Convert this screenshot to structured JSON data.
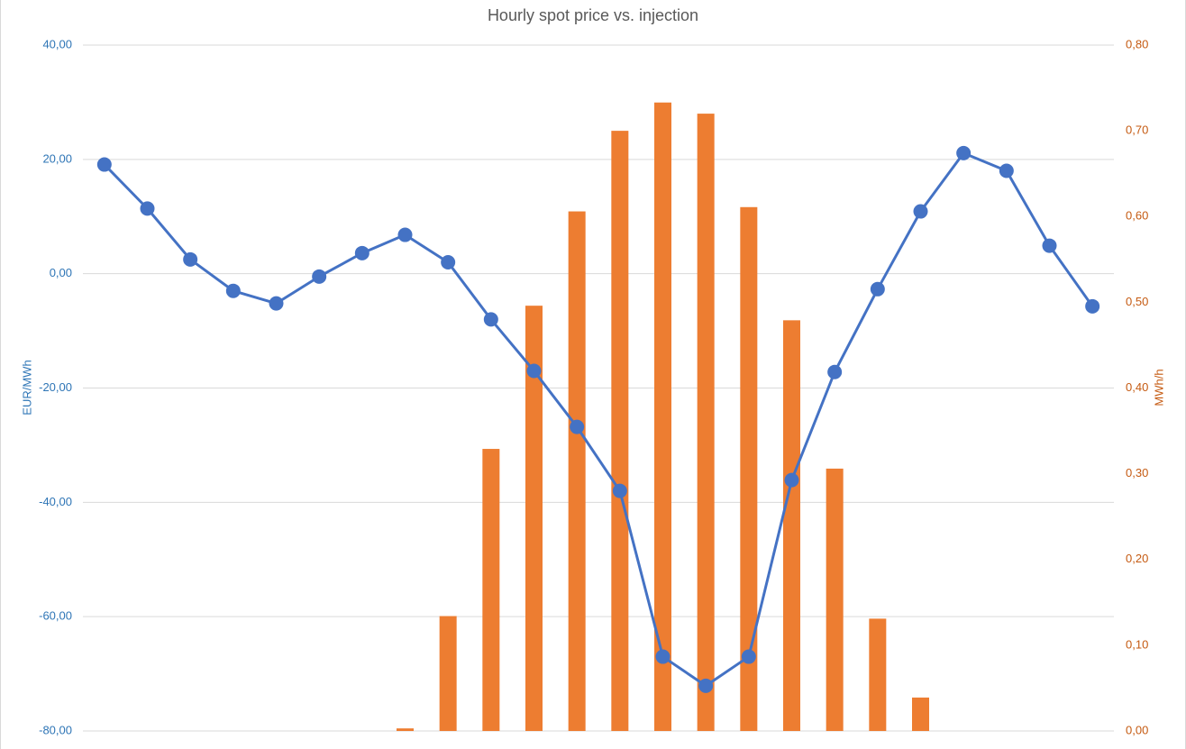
{
  "chart_data": {
    "type": "bar-line",
    "title": "Hourly spot price vs. injection",
    "y_label": "EUR/MWh",
    "y2_label": "MWh/h",
    "categories": [
      null,
      null,
      null,
      null,
      null,
      null,
      null,
      null,
      null,
      null,
      null,
      null,
      null,
      null,
      null,
      null,
      null,
      null,
      null,
      null,
      null,
      null,
      null,
      null
    ],
    "series": [
      {
        "type": "bar",
        "axis": "y2",
        "color": "#ed7d31",
        "values": [
          0,
          0,
          0,
          0,
          0,
          0,
          0,
          0.003,
          0.134,
          0.329,
          0.496,
          0.606,
          0.7,
          0.733,
          0.72,
          0.611,
          0.479,
          0.306,
          0.131,
          0.039,
          0,
          0,
          0,
          0
        ]
      },
      {
        "type": "line",
        "axis": "y",
        "color": "#4472c4",
        "values": [
          19.1,
          11.4,
          2.5,
          -3.0,
          -5.2,
          -0.5,
          3.6,
          6.8,
          2.0,
          -8.0,
          -17.0,
          -26.8,
          -38.0,
          -67.0,
          -72.1,
          -67.0,
          -36.1,
          -17.2,
          -2.7,
          10.9,
          21.1,
          18.0,
          4.9,
          -5.7
        ]
      }
    ],
    "ylim": [
      -80,
      40
    ],
    "yticks": [
      {
        "value": -80,
        "label": "-80,00"
      },
      {
        "value": -60,
        "label": "-60,00"
      },
      {
        "value": -40,
        "label": "-40,00"
      },
      {
        "value": -20,
        "label": "-20,00"
      },
      {
        "value": 0,
        "label": "0,00"
      },
      {
        "value": 20,
        "label": "20,00"
      },
      {
        "value": 40,
        "label": "40,00"
      }
    ],
    "y2lim": [
      0,
      0.8
    ],
    "y2ticks": [
      {
        "value": 0,
        "label": "0,00"
      },
      {
        "value": 0.1,
        "label": "0,10"
      },
      {
        "value": 0.2,
        "label": "0,20"
      },
      {
        "value": 0.3,
        "label": "0,30"
      },
      {
        "value": 0.4,
        "label": "0,40"
      },
      {
        "value": 0.5,
        "label": "0,50"
      },
      {
        "value": 0.6,
        "label": "0,60"
      },
      {
        "value": 0.7,
        "label": "0,70"
      },
      {
        "value": 0.8,
        "label": "0,80"
      }
    ],
    "grid": true
  }
}
